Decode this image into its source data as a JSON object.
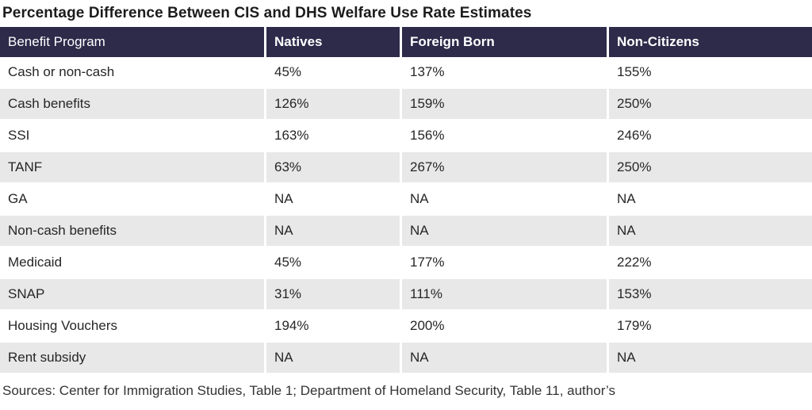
{
  "page_title": "Percentage Difference Between CIS and DHS Welfare Use Rate Estimates",
  "colors": {
    "header_bg": "#2d2a4a",
    "header_text": "#ffffff",
    "alt_row_bg": "#e8e8e8",
    "row_bg": "#ffffff",
    "title_text": "#1c1c1c",
    "body_text": "#262626"
  },
  "chart_data": {
    "type": "table",
    "title": "Percentage Difference Between CIS and DHS Welfare Use Rate Estimates",
    "columns": [
      "Benefit Program",
      "Natives",
      "Foreign Born",
      "Non-Citizens"
    ],
    "rows": [
      [
        "Cash or non-cash",
        "45%",
        "137%",
        "155%"
      ],
      [
        "Cash benefits",
        "126%",
        "159%",
        "250%"
      ],
      [
        "SSI",
        "163%",
        "156%",
        "246%"
      ],
      [
        "TANF",
        "63%",
        "267%",
        "250%"
      ],
      [
        "GA",
        "NA",
        "NA",
        "NA"
      ],
      [
        "Non-cash benefits",
        "NA",
        "NA",
        "NA"
      ],
      [
        "Medicaid",
        "45%",
        "177%",
        "222%"
      ],
      [
        "SNAP",
        "31%",
        "111%",
        "153%"
      ],
      [
        "Housing Vouchers",
        "194%",
        "200%",
        "179%"
      ],
      [
        "Rent subsidy",
        "NA",
        "NA",
        "NA"
      ]
    ],
    "layout": {
      "striping": "alternating rows, first data row white",
      "header_style": "dark navy band, first header regular weight, others bold",
      "column_separators": "3px white gaps",
      "row_separators": "2px white gaps"
    },
    "source_note": "Sources: Center for Immigration Studies, Table 1; Department of Homeland Security, Table 11, author’s"
  },
  "source_note": "Sources: Center for Immigration Studies, Table 1; Department of Homeland Security, Table 11, author’s"
}
